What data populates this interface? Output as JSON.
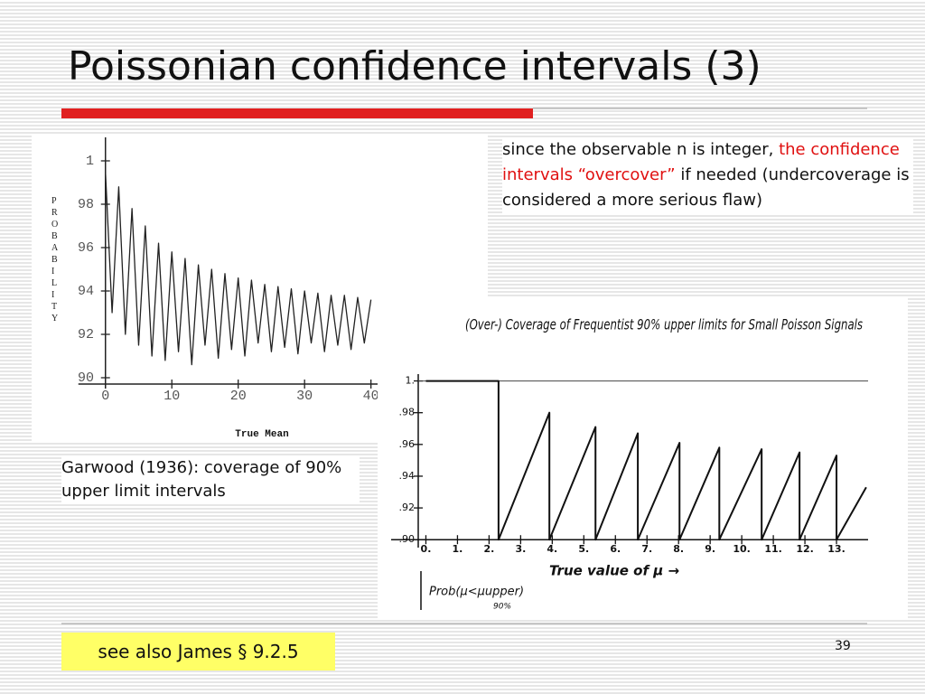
{
  "title": "Poissonian confidence intervals (3)",
  "note": {
    "before": "since the observable n is integer, ",
    "highlight": "the confidence intervals “overcover”",
    "after": " if needed (undercoverage is considered a more serious flaw)"
  },
  "left_caption": "Garwood (1936): coverage of 90% upper limit intervals",
  "footer_box": "see also James § 9.2.5",
  "page_number": "39",
  "figures": [
    {
      "type": "line",
      "ylabel": "PROBABILITY",
      "xlabel": "True Mean",
      "color": "#222222",
      "x": [
        0,
        1,
        2,
        3,
        4,
        5,
        6,
        7,
        8,
        9,
        10,
        11,
        12,
        13,
        14,
        15,
        16,
        17,
        18,
        19,
        20,
        21,
        22,
        23,
        24,
        25,
        26,
        27,
        28,
        29,
        30,
        31,
        32,
        33,
        34,
        35,
        36,
        37,
        38,
        39,
        40
      ],
      "y": [
        99.5,
        93.0,
        98.8,
        92.0,
        97.8,
        91.5,
        97.0,
        91.0,
        96.2,
        90.8,
        95.8,
        91.2,
        95.5,
        90.6,
        95.2,
        91.5,
        95.0,
        90.9,
        94.8,
        91.3,
        94.6,
        91.0,
        94.5,
        91.6,
        94.3,
        91.2,
        94.2,
        91.4,
        94.1,
        91.1,
        94.0,
        91.6,
        93.9,
        91.2,
        93.8,
        91.5,
        93.8,
        91.3,
        93.7,
        91.6,
        93.6
      ],
      "xlim": [
        -5,
        41
      ],
      "ylim": [
        89.5,
        101.5
      ],
      "xticks": [
        0,
        10,
        20,
        30,
        40
      ],
      "yticks": [
        {
          "value": 100,
          "label": "1"
        },
        98,
        96,
        94,
        92,
        90
      ]
    },
    {
      "type": "line",
      "title": "(Over-) Coverage of Frequentist 90% upper limits for Small Poisson Signals",
      "xlabel": "True value of μ →",
      "ylabel": "Prob(μ<μupper)",
      "ylabel_note": "90%",
      "color": "#111111",
      "x": [
        0,
        2.3,
        2.3,
        3.91,
        3.91,
        5.37,
        5.37,
        6.71,
        6.71,
        8.03,
        8.03,
        9.29,
        9.29,
        10.63,
        10.63,
        11.83,
        11.83,
        13.0,
        13.0,
        13.94
      ],
      "y": [
        1,
        1,
        0.9,
        0.98,
        0.9,
        0.971,
        0.9,
        0.967,
        0.9,
        0.961,
        0.9,
        0.958,
        0.9,
        0.957,
        0.9,
        0.955,
        0.9,
        0.953,
        0.9,
        0.933
      ],
      "xlim": [
        -0.9,
        14
      ],
      "ylim": [
        0.895,
        1.01
      ],
      "xticks": [
        {
          "value": 0,
          "label": "0."
        },
        {
          "value": 1,
          "label": "1."
        },
        {
          "value": 2,
          "label": "2."
        },
        {
          "value": 3,
          "label": "3."
        },
        {
          "value": 4,
          "label": "4."
        },
        {
          "value": 5,
          "label": "5."
        },
        {
          "value": 6,
          "label": "6."
        },
        {
          "value": 7,
          "label": "7."
        },
        {
          "value": 8,
          "label": "8."
        },
        {
          "value": 9,
          "label": "9."
        },
        {
          "value": 10,
          "label": "10."
        },
        {
          "value": 11,
          "label": "11."
        },
        {
          "value": 12,
          "label": "12."
        },
        {
          "value": 13,
          "label": "13."
        }
      ],
      "yticks": [
        {
          "value": 1,
          "label": "1."
        },
        {
          "value": 0.98,
          "label": ".98"
        },
        {
          "value": 0.96,
          "label": ".96"
        },
        {
          "value": 0.94,
          "label": ".94"
        },
        {
          "value": 0.92,
          "label": ".92"
        },
        {
          "value": 0.9,
          "label": ".90"
        }
      ]
    }
  ]
}
